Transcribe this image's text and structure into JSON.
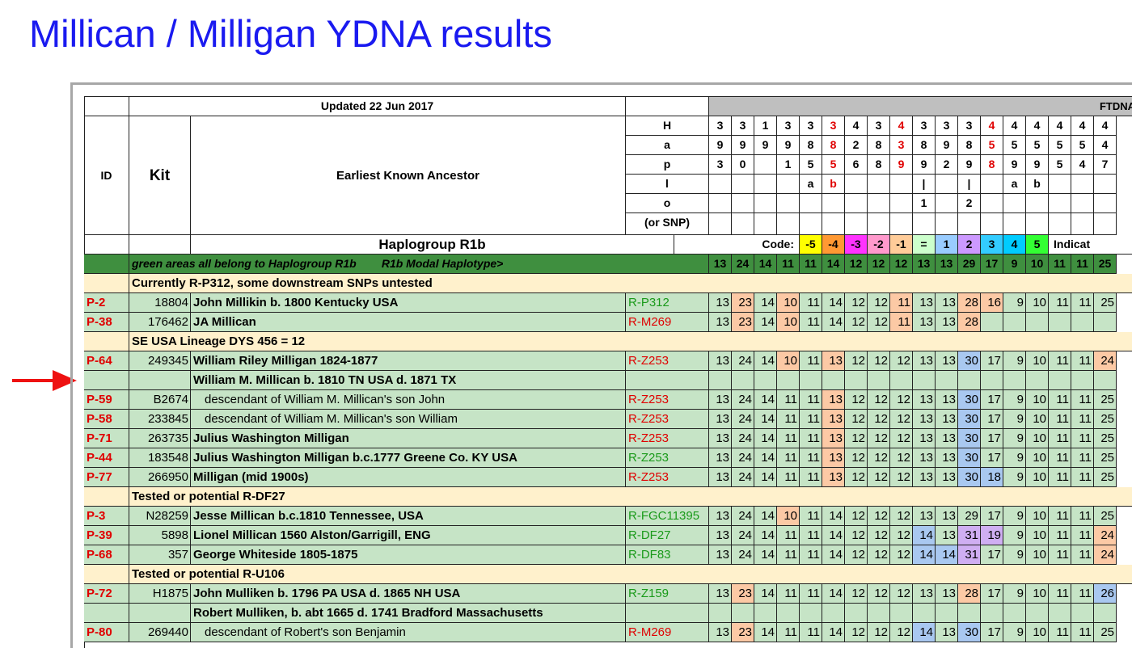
{
  "title": "Millican / Milligan YDNA results",
  "updated": "Updated 22 Jun 2017",
  "ftdna": "FTDNA",
  "header": {
    "id": "ID",
    "kit": "Kit",
    "ancestor": "Earliest Known Ancestor"
  },
  "haplo_labels": [
    "H",
    "a",
    "p",
    "l",
    "o",
    "(or SNP)"
  ],
  "marker_header_rows": [
    [
      "3",
      "3",
      "1",
      "3",
      "3",
      "3",
      "4",
      "3",
      "4",
      "3",
      "3",
      "3",
      "4",
      "4",
      "4",
      "4",
      "4",
      "4"
    ],
    [
      "9",
      "9",
      "9",
      "9",
      "8",
      "8",
      "2",
      "8",
      "3",
      "8",
      "9",
      "8",
      "5",
      "5",
      "5",
      "5",
      "5",
      "4"
    ],
    [
      "3",
      "0",
      "",
      "1",
      "5",
      "5",
      "6",
      "8",
      "9",
      "9",
      "2",
      "9",
      "8",
      "9",
      "9",
      "5",
      "4",
      "7"
    ],
    [
      "",
      "",
      "",
      "",
      "a",
      "b",
      "",
      "",
      "",
      "|",
      "",
      "|",
      "",
      "a",
      "b",
      "",
      "",
      ""
    ],
    [
      "",
      "",
      "",
      "",
      "",
      "",
      "",
      "",
      "",
      "1",
      "",
      "2",
      "",
      "",
      "",
      "",
      "",
      ""
    ],
    [
      "",
      "",
      "",
      "",
      "",
      "",
      "",
      "",
      "",
      "",
      "",
      "",
      "",
      "",
      "",
      "",
      "",
      ""
    ]
  ],
  "marker_header_red": [
    [
      false,
      false,
      false,
      false,
      false,
      true,
      false,
      false,
      true,
      false,
      false,
      false,
      true,
      false,
      false,
      false,
      false,
      false
    ],
    [
      false,
      false,
      false,
      false,
      false,
      true,
      false,
      false,
      true,
      false,
      false,
      false,
      true,
      false,
      false,
      false,
      false,
      false
    ],
    [
      false,
      false,
      false,
      false,
      false,
      true,
      false,
      false,
      true,
      false,
      false,
      false,
      true,
      false,
      false,
      false,
      false,
      false
    ],
    [
      false,
      false,
      false,
      false,
      false,
      true,
      false,
      false,
      false,
      false,
      false,
      false,
      false,
      false,
      false,
      false,
      false,
      false
    ],
    [
      false,
      false,
      false,
      false,
      false,
      false,
      false,
      false,
      false,
      false,
      false,
      false,
      false,
      false,
      false,
      false,
      false,
      false
    ],
    [
      false,
      false,
      false,
      false,
      false,
      false,
      false,
      false,
      false,
      false,
      false,
      false,
      false,
      false,
      false,
      false,
      false,
      false
    ]
  ],
  "haplogroup": "Haplogroup R1b",
  "code_label": "Code:",
  "codes": [
    {
      "label": "-5",
      "color": "#ffff00"
    },
    {
      "label": "-4",
      "color": "#ff9933"
    },
    {
      "label": "-3",
      "color": "#ff33ff"
    },
    {
      "label": "-2",
      "color": "#ff99cc"
    },
    {
      "label": "-1",
      "color": "#ffcc99"
    },
    {
      "label": "=",
      "color": "#ccffcc"
    },
    {
      "label": "1",
      "color": "#99ccff"
    },
    {
      "label": "2",
      "color": "#cc99ff"
    },
    {
      "label": "3",
      "color": "#33ccff"
    },
    {
      "label": "4",
      "color": "#00ccff"
    },
    {
      "label": "5",
      "color": "#33ff33"
    }
  ],
  "indicator_label": "Indicat",
  "modal": {
    "text": "green areas all belong to Haplogroup R1b        R1b Modal Haplotype>",
    "values": [
      "13",
      "24",
      "14",
      "11",
      "11",
      "14",
      "12",
      "12",
      "12",
      "13",
      "13",
      "29",
      "17",
      "9",
      "10",
      "11",
      "11",
      "25"
    ]
  },
  "colors": {
    "orange": "#fcc9a5",
    "blue": "#a9c8f0",
    "purple": "#cfaef2",
    "green": "#c6e4c6",
    "beige": "#fff1cc",
    "dark": "#3f8f3f"
  },
  "rows": [
    {
      "type": "section",
      "text": "Currently R-P312, some downstream SNPs untested"
    },
    {
      "type": "data",
      "id": "P-2",
      "kit": "18804",
      "anc": "John Millikin b. 1800 Kentucky USA",
      "snp": "R-P312",
      "snp_color": "green",
      "vals": [
        "13",
        "23",
        "14",
        "10",
        "11",
        "14",
        "12",
        "12",
        "11",
        "13",
        "13",
        "28",
        "16",
        "9",
        "10",
        "11",
        "11",
        "25"
      ],
      "hl": {
        "1": "orange",
        "3": "orange",
        "8": "orange",
        "11": "orange",
        "12": "orange"
      }
    },
    {
      "type": "data",
      "id": "P-38",
      "kit": "176462",
      "anc": "JA Millican",
      "snp": "R-M269",
      "snp_color": "red",
      "vals": [
        "13",
        "23",
        "14",
        "10",
        "11",
        "14",
        "12",
        "12",
        "11",
        "13",
        "13",
        "28",
        "",
        "",
        "",
        "",
        "",
        ""
      ],
      "hl": {
        "1": "orange",
        "3": "orange",
        "8": "orange",
        "11": "orange"
      }
    },
    {
      "type": "section",
      "text": "SE USA Lineage DYS 456 = 12"
    },
    {
      "type": "data",
      "id": "P-64",
      "kit": "249345",
      "anc": "William Riley Milligan 1824-1877",
      "snp": "R-Z253",
      "snp_color": "red",
      "vals": [
        "13",
        "24",
        "14",
        "10",
        "11",
        "13",
        "12",
        "12",
        "12",
        "13",
        "13",
        "30",
        "17",
        "9",
        "10",
        "11",
        "11",
        "24"
      ],
      "hl": {
        "3": "orange",
        "5": "orange",
        "11": "blue",
        "17": "orange"
      }
    },
    {
      "type": "group",
      "anc": "William M. Millican b. 1810 TN USA d. 1871 TX"
    },
    {
      "type": "data",
      "id": "P-59",
      "kit": "B2674",
      "anc": "descendant of William M. Millican's son John",
      "indent": true,
      "snp": "R-Z253",
      "snp_color": "red",
      "vals": [
        "13",
        "24",
        "14",
        "11",
        "11",
        "13",
        "12",
        "12",
        "12",
        "13",
        "13",
        "30",
        "17",
        "9",
        "10",
        "11",
        "11",
        "25"
      ],
      "hl": {
        "5": "orange",
        "11": "blue"
      }
    },
    {
      "type": "data",
      "id": "P-58",
      "kit": "233845",
      "anc": "descendant of William M. Millican's son William",
      "indent": true,
      "snp": "R-Z253",
      "snp_color": "red",
      "vals": [
        "13",
        "24",
        "14",
        "11",
        "11",
        "13",
        "12",
        "12",
        "12",
        "13",
        "13",
        "30",
        "17",
        "9",
        "10",
        "11",
        "11",
        "25"
      ],
      "hl": {
        "5": "orange",
        "11": "blue"
      }
    },
    {
      "type": "data",
      "id": "P-71",
      "kit": "263735",
      "anc": "Julius Washington Milligan",
      "snp": "R-Z253",
      "snp_color": "red",
      "vals": [
        "13",
        "24",
        "14",
        "11",
        "11",
        "13",
        "12",
        "12",
        "12",
        "13",
        "13",
        "30",
        "17",
        "9",
        "10",
        "11",
        "11",
        "25"
      ],
      "hl": {
        "5": "orange",
        "11": "blue"
      }
    },
    {
      "type": "data",
      "id": "P-44",
      "kit": "183548",
      "anc": "Julius Washington Milligan b.c.1777 Greene Co. KY USA",
      "snp": "R-Z253",
      "snp_color": "green",
      "vals": [
        "13",
        "24",
        "14",
        "11",
        "11",
        "13",
        "12",
        "12",
        "12",
        "13",
        "13",
        "30",
        "17",
        "9",
        "10",
        "11",
        "11",
        "25"
      ],
      "hl": {
        "5": "orange",
        "11": "blue"
      }
    },
    {
      "type": "data",
      "id": "P-77",
      "kit": "266950",
      "anc": "Milligan (mid 1900s)",
      "snp": "R-Z253",
      "snp_color": "red",
      "vals": [
        "13",
        "24",
        "14",
        "11",
        "11",
        "13",
        "12",
        "12",
        "12",
        "13",
        "13",
        "30",
        "18",
        "9",
        "10",
        "11",
        "11",
        "25"
      ],
      "hl": {
        "5": "orange",
        "11": "blue",
        "12": "blue"
      }
    },
    {
      "type": "section",
      "text": "Tested or potential R-DF27"
    },
    {
      "type": "data",
      "id": "P-3",
      "kit": "N28259",
      "anc": "Jesse Millican b.c.1810 Tennessee, USA",
      "snp": "R-FGC11395",
      "snp_color": "green",
      "vals": [
        "13",
        "24",
        "14",
        "10",
        "11",
        "14",
        "12",
        "12",
        "12",
        "13",
        "13",
        "29",
        "17",
        "9",
        "10",
        "11",
        "11",
        "25"
      ],
      "hl": {
        "3": "orange"
      }
    },
    {
      "type": "data",
      "id": "P-39",
      "kit": "5898",
      "anc": "Lionel Millican 1560 Alston/Garrigill, ENG",
      "snp": "R-DF27",
      "snp_color": "green",
      "vals": [
        "13",
        "24",
        "14",
        "11",
        "11",
        "14",
        "12",
        "12",
        "12",
        "14",
        "13",
        "31",
        "19",
        "9",
        "10",
        "11",
        "11",
        "24"
      ],
      "hl": {
        "9": "blue",
        "11": "purple",
        "12": "purple",
        "17": "orange"
      }
    },
    {
      "type": "data",
      "id": "P-68",
      "kit": "357",
      "anc": "George Whiteside 1805-1875",
      "snp": "R-DF83",
      "snp_color": "green",
      "vals": [
        "13",
        "24",
        "14",
        "11",
        "11",
        "14",
        "12",
        "12",
        "12",
        "14",
        "14",
        "31",
        "17",
        "9",
        "10",
        "11",
        "11",
        "24"
      ],
      "hl": {
        "9": "blue",
        "10": "blue",
        "11": "purple",
        "17": "orange"
      }
    },
    {
      "type": "section",
      "text": "Tested or potential R-U106"
    },
    {
      "type": "data",
      "id": "P-72",
      "kit": "H1875",
      "anc": "John Mulliken b. 1796 PA USA d. 1865 NH USA",
      "snp": "R-Z159",
      "snp_color": "green",
      "vals": [
        "13",
        "23",
        "14",
        "11",
        "11",
        "14",
        "12",
        "12",
        "12",
        "13",
        "13",
        "28",
        "17",
        "9",
        "10",
        "11",
        "11",
        "26"
      ],
      "hl": {
        "1": "orange",
        "11": "orange",
        "17": "blue"
      }
    },
    {
      "type": "group",
      "anc": "Robert Mulliken, b. abt 1665 d. 1741 Bradford Massachusetts"
    },
    {
      "type": "data",
      "id": "P-80",
      "kit": "269440",
      "anc": "descendant of Robert's son Benjamin",
      "indent": true,
      "snp": "R-M269",
      "snp_color": "red",
      "vals": [
        "13",
        "23",
        "14",
        "11",
        "11",
        "14",
        "12",
        "12",
        "12",
        "14",
        "13",
        "30",
        "17",
        "9",
        "10",
        "11",
        "11",
        "25"
      ],
      "hl": {
        "1": "orange",
        "9": "blue",
        "11": "blue"
      }
    }
  ]
}
